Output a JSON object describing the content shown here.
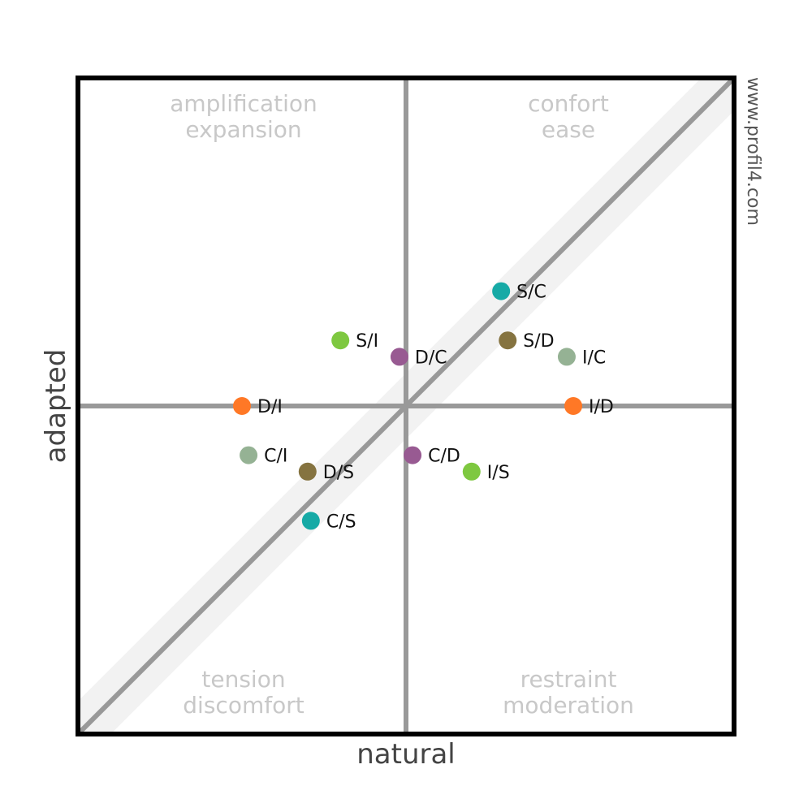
{
  "chart_data": {
    "type": "scatter",
    "xlabel": "natural",
    "ylabel": "adapted",
    "xlim": [
      -1,
      1
    ],
    "ylim": [
      -1,
      1
    ],
    "watermark": "www.profil4.com",
    "quadrants": {
      "top_left": [
        "amplification",
        "expansion"
      ],
      "top_right": [
        "confort",
        "ease"
      ],
      "bottom_left": [
        "tension",
        "discomfort"
      ],
      "bottom_right": [
        "restraint",
        "moderation"
      ]
    },
    "colors": {
      "frame": "#000000",
      "axis_line": "#999999",
      "band": "#f2f2f2"
    },
    "band_half_width": 0.1,
    "points": [
      {
        "label": "S/C",
        "x": 0.29,
        "y": 0.35,
        "color": "#16aaa6"
      },
      {
        "label": "S/I",
        "x": -0.2,
        "y": 0.2,
        "color": "#7ec840"
      },
      {
        "label": "S/D",
        "x": 0.31,
        "y": 0.2,
        "color": "#857340"
      },
      {
        "label": "D/C",
        "x": -0.02,
        "y": 0.15,
        "color": "#985a92"
      },
      {
        "label": "I/C",
        "x": 0.49,
        "y": 0.15,
        "color": "#95b294"
      },
      {
        "label": "D/I",
        "x": -0.5,
        "y": 0.0,
        "color": "#ff7826"
      },
      {
        "label": "I/D",
        "x": 0.51,
        "y": 0.0,
        "color": "#ff7826"
      },
      {
        "label": "C/I",
        "x": -0.48,
        "y": -0.15,
        "color": "#95b294"
      },
      {
        "label": "C/D",
        "x": 0.02,
        "y": -0.15,
        "color": "#985a92"
      },
      {
        "label": "D/S",
        "x": -0.3,
        "y": -0.2,
        "color": "#857340"
      },
      {
        "label": "I/S",
        "x": 0.2,
        "y": -0.2,
        "color": "#7ec840"
      },
      {
        "label": "C/S",
        "x": -0.29,
        "y": -0.35,
        "color": "#16aaa6"
      }
    ]
  }
}
